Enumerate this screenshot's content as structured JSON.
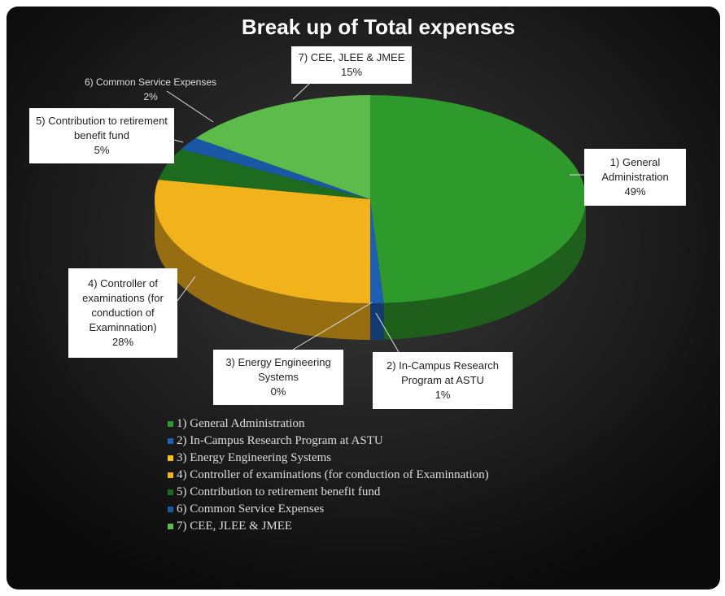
{
  "chart_data": {
    "type": "pie",
    "title": "Break up of Total expenses",
    "categories": [
      "1) General Administration",
      "2) In-Campus Research Program at ASTU",
      "3) Energy Engineering Systems",
      "4) Controller of examinations (for conduction of Examinnation)",
      "5) Contribution to retirement benefit fund",
      "6) Common Service Expenses",
      "7) CEE, JLEE & JMEE"
    ],
    "values": [
      49,
      1,
      0,
      28,
      5,
      2,
      15
    ],
    "value_labels": [
      "49%",
      "1%",
      "0%",
      "28%",
      "5%",
      "2%",
      "15%"
    ],
    "colors": [
      "#2f9a2c",
      "#1f5fb3",
      "#f6c21a",
      "#f2b21c",
      "#1d6b1e",
      "#1a58a6",
      "#5dbb4c"
    ],
    "legend": "bottom"
  }
}
